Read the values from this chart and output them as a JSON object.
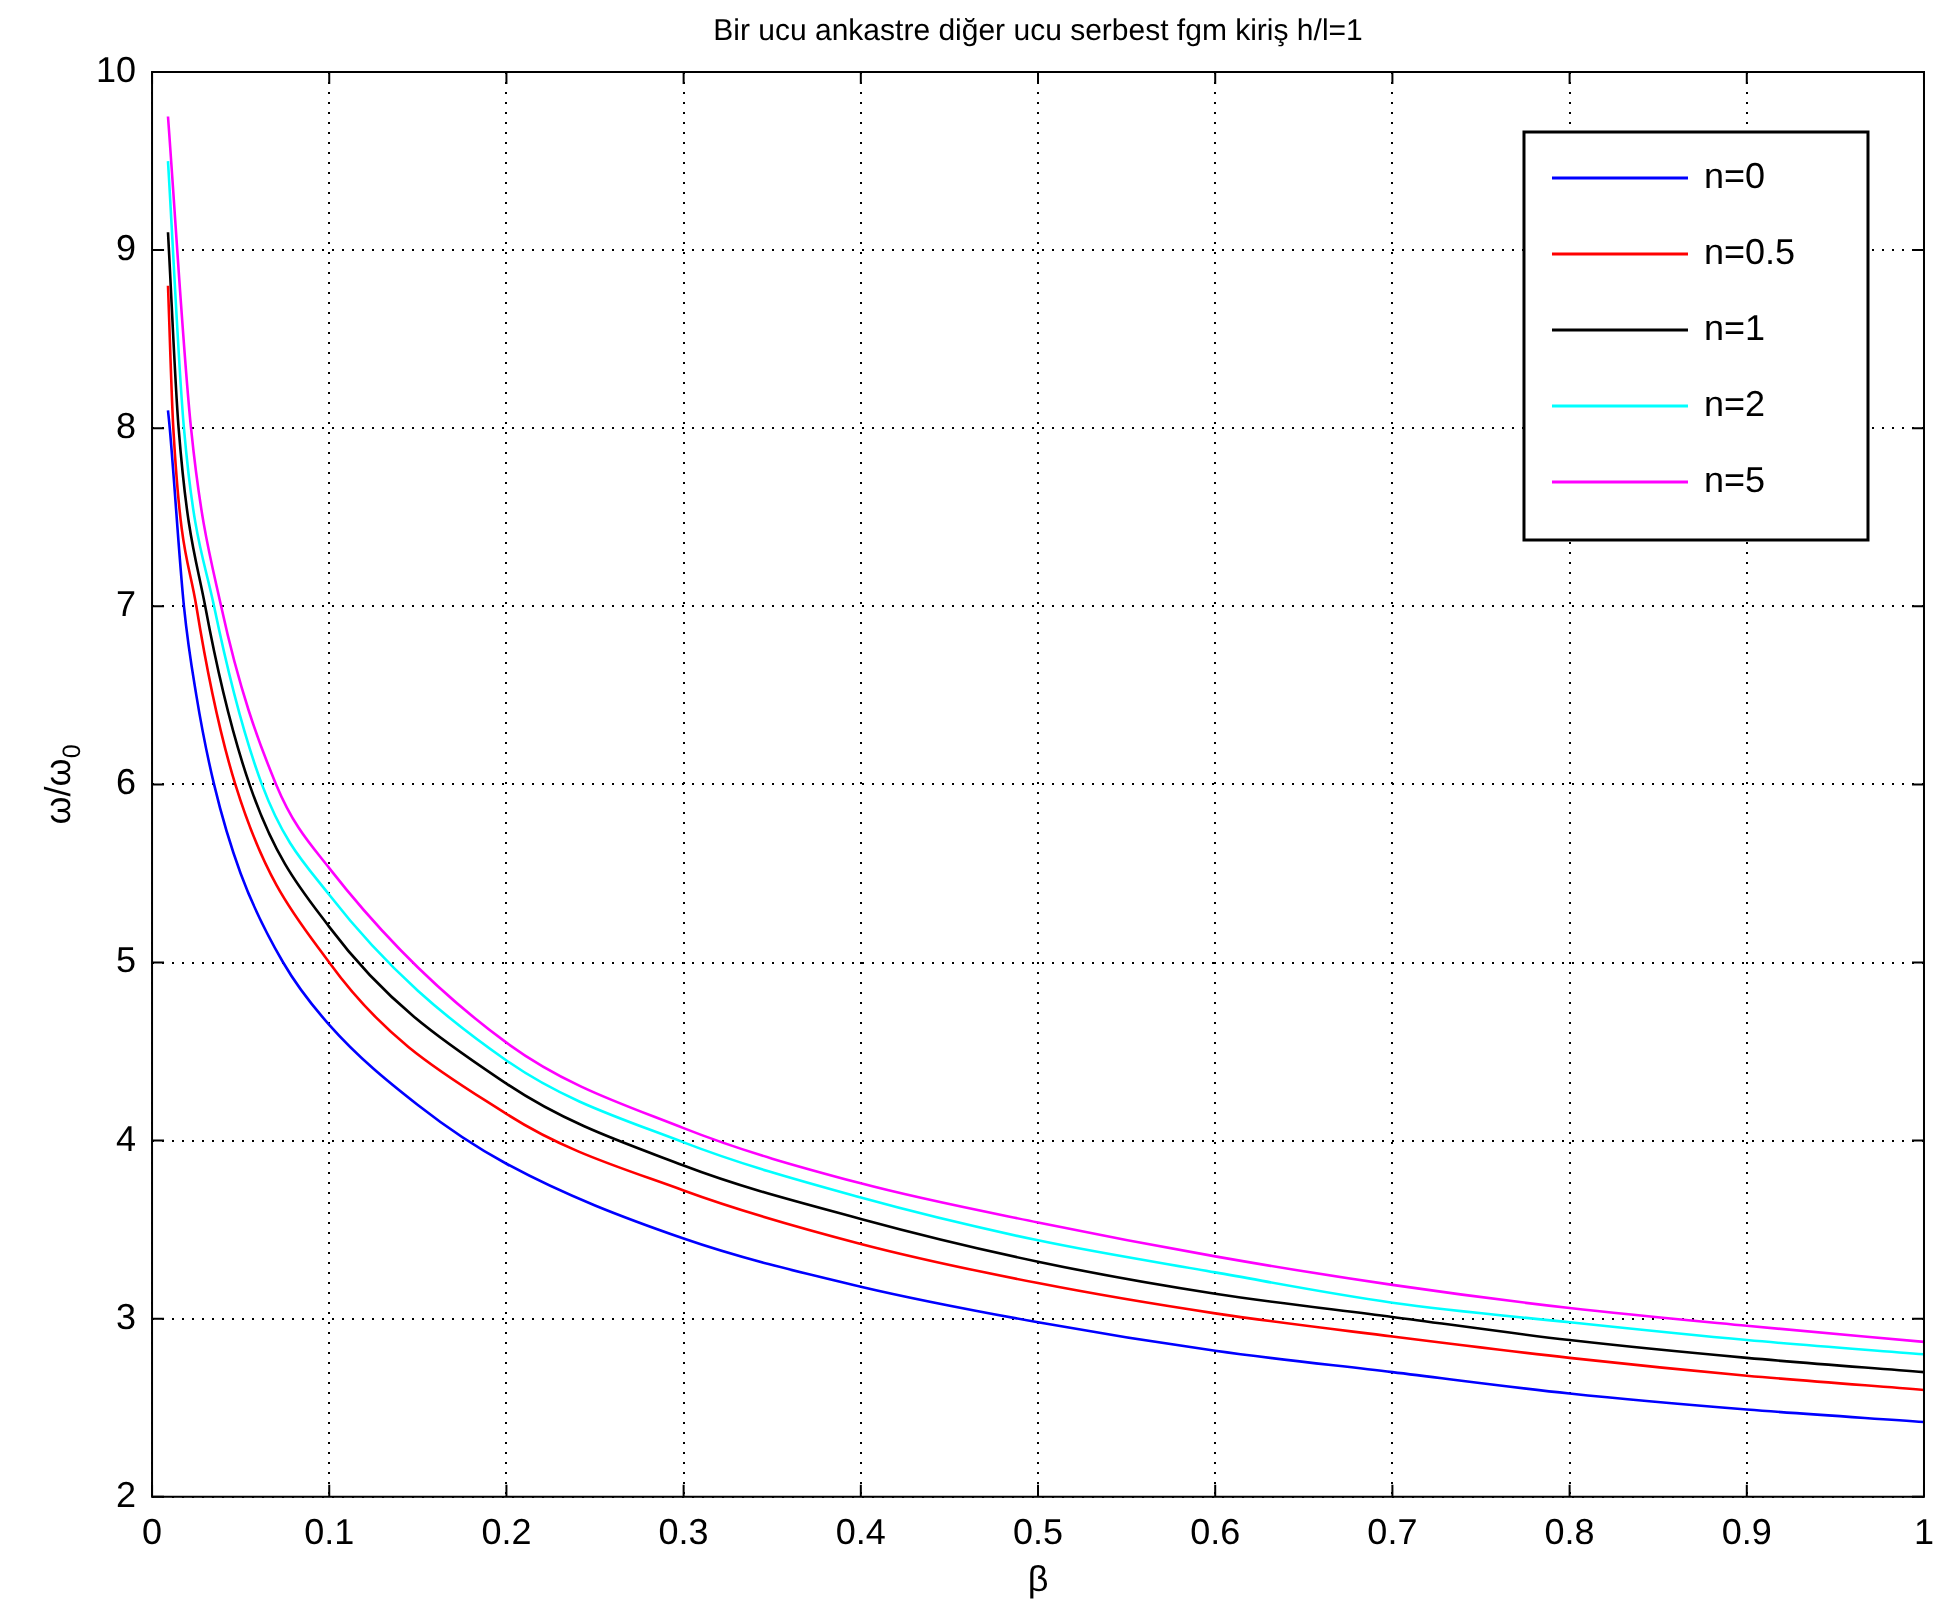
{
  "chart_data": {
    "type": "line",
    "title": "Bir ucu ankastre diğer ucu serbest fgm kiriş h/l=1",
    "xlabel": "β",
    "ylabel": "ω/ω$_{0}$",
    "xlim": [
      0,
      1
    ],
    "xticks": [
      0,
      0.1,
      0.2,
      0.3,
      0.4,
      0.5,
      0.6,
      0.7,
      0.8,
      0.9,
      1
    ],
    "ylim": [
      2,
      10
    ],
    "yticks": [
      2,
      3,
      4,
      5,
      6,
      7,
      8,
      9,
      10
    ],
    "grid": true,
    "legend": "top right",
    "line_style": "solid",
    "marker": "none",
    "series": [
      {
        "name": "n=0",
        "color": "#0000ff",
        "x": [
          0.009,
          0.01,
          0.018,
          0.025,
          0.035,
          0.05,
          0.074,
          0.1,
          0.15,
          0.2,
          0.3,
          0.4,
          0.5,
          0.6,
          0.7,
          0.8,
          0.9,
          1
        ],
        "values": [
          8.1,
          8.0,
          7.0,
          6.5,
          6.0,
          5.5,
          5.0,
          4.65,
          4.2,
          3.87,
          3.45,
          3.18,
          2.98,
          2.82,
          2.7,
          2.58,
          2.49,
          2.42
        ]
      },
      {
        "name": "n=0.5",
        "color": "#ff0000",
        "x": [
          0.009,
          0.012,
          0.025,
          0.047,
          0.1,
          0.2,
          0.3,
          0.4,
          0.5,
          0.6,
          0.7,
          0.8,
          0.9,
          1
        ],
        "values": [
          8.8,
          8.0,
          7.0,
          6.0,
          5.0,
          4.15,
          3.72,
          3.42,
          3.2,
          3.03,
          2.9,
          2.78,
          2.68,
          2.6
        ]
      },
      {
        "name": "n=1",
        "color": "#000000",
        "x": [
          0.009,
          0.015,
          0.03,
          0.055,
          0.1,
          0.2,
          0.3,
          0.4,
          0.5,
          0.6,
          0.7,
          0.8,
          0.9,
          1
        ],
        "values": [
          9.1,
          8.0,
          7.0,
          6.0,
          5.2,
          4.32,
          3.86,
          3.56,
          3.32,
          3.14,
          3.01,
          2.88,
          2.78,
          2.7
        ]
      },
      {
        "name": "n=2",
        "color": "#00ffff",
        "x": [
          0.009,
          0.018,
          0.035,
          0.062,
          0.1,
          0.2,
          0.3,
          0.4,
          0.5,
          0.6,
          0.7,
          0.8,
          0.9,
          1
        ],
        "values": [
          9.5,
          8.0,
          7.0,
          6.0,
          5.38,
          4.45,
          3.99,
          3.68,
          3.44,
          3.26,
          3.09,
          2.98,
          2.88,
          2.8
        ]
      },
      {
        "name": "n=5",
        "color": "#ff00ff",
        "x": [
          0.009,
          0.022,
          0.039,
          0.07,
          0.1,
          0.2,
          0.3,
          0.4,
          0.5,
          0.6,
          0.7,
          0.8,
          0.9,
          1
        ],
        "values": [
          9.75,
          8.0,
          7.0,
          6.0,
          5.53,
          4.55,
          4.07,
          3.76,
          3.54,
          3.35,
          3.19,
          3.06,
          2.96,
          2.87
        ]
      }
    ]
  }
}
